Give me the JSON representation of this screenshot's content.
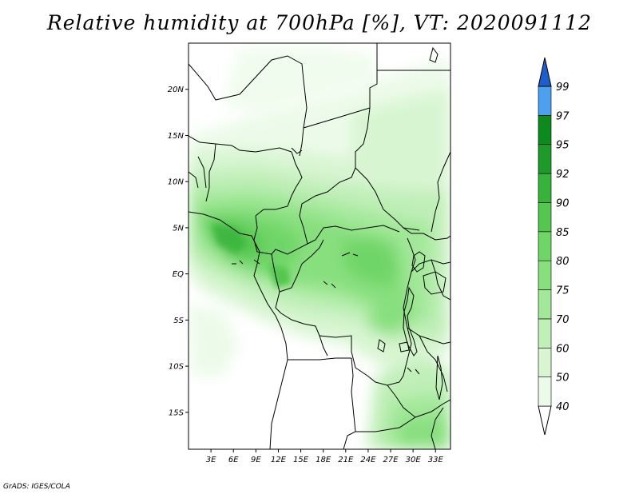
{
  "title": "Relative humidity at 700hPa [%], VT: 2020091112",
  "credit": "GrADS: IGES/COLA",
  "map": {
    "lat_range": [
      -19,
      25
    ],
    "lon_range": [
      0,
      35
    ],
    "lat_ticks": [
      {
        "value": 20,
        "label": "20N"
      },
      {
        "value": 15,
        "label": "15N"
      },
      {
        "value": 10,
        "label": "10N"
      },
      {
        "value": 5,
        "label": "5N"
      },
      {
        "value": 0,
        "label": "EQ"
      },
      {
        "value": -5,
        "label": "5S"
      },
      {
        "value": -10,
        "label": "10S"
      },
      {
        "value": -15,
        "label": "15S"
      }
    ],
    "lon_ticks": [
      {
        "value": 3,
        "label": "3E"
      },
      {
        "value": 6,
        "label": "6E"
      },
      {
        "value": 9,
        "label": "9E"
      },
      {
        "value": 12,
        "label": "12E"
      },
      {
        "value": 15,
        "label": "15E"
      },
      {
        "value": 18,
        "label": "18E"
      },
      {
        "value": 21,
        "label": "21E"
      },
      {
        "value": 24,
        "label": "24E"
      },
      {
        "value": 27,
        "label": "27E"
      },
      {
        "value": 30,
        "label": "30E"
      },
      {
        "value": 33,
        "label": "33E"
      }
    ]
  },
  "colorbar": {
    "levels": [
      {
        "label": "40",
        "color": "#ecfbe9"
      },
      {
        "label": "50",
        "color": "#d8f5d2"
      },
      {
        "label": "60",
        "color": "#c0efb8"
      },
      {
        "label": "70",
        "color": "#a3e89a"
      },
      {
        "label": "75",
        "color": "#88df7e"
      },
      {
        "label": "80",
        "color": "#6fd567"
      },
      {
        "label": "85",
        "color": "#55c650"
      },
      {
        "label": "90",
        "color": "#37b33c"
      },
      {
        "label": "92",
        "color": "#1e9a2a"
      },
      {
        "label": "95",
        "color": "#0c8a1e"
      },
      {
        "label": "97",
        "color": "#4ca0ee"
      },
      {
        "label": "99",
        "color": "#2678dc"
      }
    ],
    "top_color": "#1e5ecc",
    "bottom_color": "#ffffff"
  }
}
